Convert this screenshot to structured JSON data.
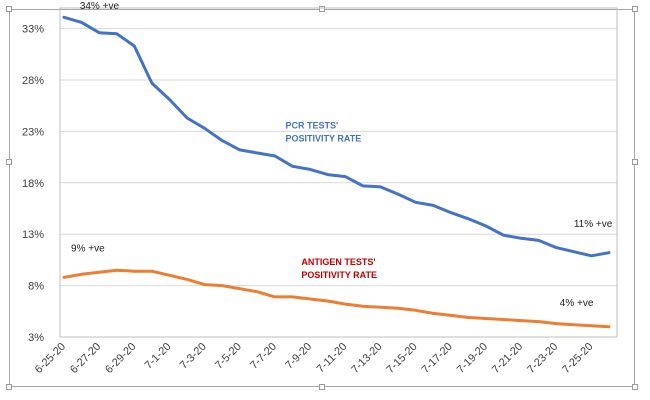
{
  "chart_data": {
    "type": "line",
    "title": "",
    "xlabel": "",
    "ylabel": "",
    "ylim": [
      3,
      35
    ],
    "yticks": [
      "3%",
      "8%",
      "13%",
      "18%",
      "23%",
      "28%",
      "33%"
    ],
    "ytick_values": [
      3,
      8,
      13,
      18,
      23,
      28,
      33
    ],
    "grid": true,
    "x_tick_labels": [
      "6-25-20",
      "6-27-20",
      "6-29-20",
      "7-1-20",
      "7-3-20",
      "7-5-20",
      "7-7-20",
      "7-9-20",
      "7-11-20",
      "7-13-20",
      "7-15-20",
      "7-17-20",
      "7-19-20",
      "7-21-20",
      "7-23-20",
      "7-25-20"
    ],
    "x": [
      "6-25-20",
      "6-26-20",
      "6-27-20",
      "6-28-20",
      "6-29-20",
      "6-30-20",
      "7-1-20",
      "7-2-20",
      "7-3-20",
      "7-4-20",
      "7-5-20",
      "7-6-20",
      "7-7-20",
      "7-8-20",
      "7-9-20",
      "7-10-20",
      "7-11-20",
      "7-12-20",
      "7-13-20",
      "7-14-20",
      "7-15-20",
      "7-16-20",
      "7-17-20",
      "7-18-20",
      "7-19-20",
      "7-20-20",
      "7-21-20",
      "7-22-20",
      "7-23-20",
      "7-24-20",
      "7-25-20",
      "7-26-20"
    ],
    "series": [
      {
        "name": "PCR TESTS' POSITIVITY RATE",
        "color": "#4472c4",
        "values": [
          34.1,
          33.6,
          32.6,
          32.5,
          31.3,
          27.7,
          26.1,
          24.3,
          23.3,
          22.1,
          21.2,
          20.9,
          20.6,
          19.6,
          19.3,
          18.8,
          18.6,
          17.7,
          17.6,
          16.9,
          16.1,
          15.8,
          15.1,
          14.5,
          13.8,
          12.9,
          12.6,
          12.4,
          11.7,
          11.3,
          10.9,
          11.2
        ]
      },
      {
        "name": "ANTIGEN TESTS' POSITIVITY RATE",
        "color": "#ed7d31",
        "values": [
          8.8,
          9.1,
          9.3,
          9.5,
          9.4,
          9.4,
          9.0,
          8.6,
          8.1,
          8.0,
          7.7,
          7.4,
          6.9,
          6.9,
          6.7,
          6.5,
          6.2,
          6.0,
          5.9,
          5.8,
          5.6,
          5.3,
          5.1,
          4.9,
          4.8,
          4.7,
          4.6,
          4.5,
          4.3,
          4.2,
          4.1,
          4.0
        ]
      }
    ],
    "annotations": [
      {
        "text": "34% +ve",
        "x_index": 0.9,
        "y": 34.9
      },
      {
        "text": "9% +ve",
        "x_index": 0.4,
        "y": 11.3
      },
      {
        "text": "11% +ve",
        "x_index": 29.0,
        "y": 13.7
      },
      {
        "text": "4% +ve",
        "x_index": 28.2,
        "y": 6.0
      }
    ],
    "series_labels": [
      {
        "lines": [
          "PCR TESTS'",
          "POSITIVITY RATE"
        ],
        "color": "#4472c4",
        "x_index": 12.6,
        "y": 23.3
      },
      {
        "lines": [
          "ANTIGEN TESTS'",
          "POSITIVITY RATE"
        ],
        "color": "#c00000",
        "x_index": 13.5,
        "y": 10.0
      }
    ]
  }
}
